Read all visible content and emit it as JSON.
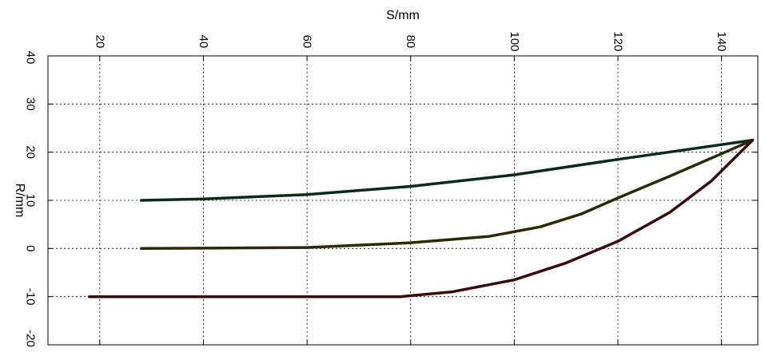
{
  "chart_data": {
    "type": "line",
    "title": "",
    "xlabel": "S/mm",
    "ylabel": "R/mm",
    "xlim": [
      10,
      147
    ],
    "ylim": [
      -20,
      40
    ],
    "xticks": [
      20,
      40,
      60,
      80,
      100,
      120,
      140
    ],
    "yticks": [
      -20,
      -10,
      0,
      10,
      20,
      30,
      40
    ],
    "grid": true,
    "legend": "none",
    "series": [
      {
        "color": "#0a2a1a",
        "points": [
          [
            28,
            10
          ],
          [
            40,
            10.3
          ],
          [
            60,
            11.2
          ],
          [
            80,
            12.9
          ],
          [
            100,
            15.3
          ],
          [
            120,
            18.5
          ],
          [
            146,
            22.5
          ]
        ]
      },
      {
        "color": "#2a2a08",
        "points": [
          [
            28,
            0
          ],
          [
            60,
            0.2
          ],
          [
            80,
            1.2
          ],
          [
            95,
            2.5
          ],
          [
            105,
            4.5
          ],
          [
            113,
            7.2
          ],
          [
            120,
            10.5
          ],
          [
            130,
            15
          ],
          [
            146,
            22.5
          ]
        ]
      },
      {
        "color": "#3a0a0a",
        "points": [
          [
            18,
            -10
          ],
          [
            50,
            -10
          ],
          [
            78,
            -10
          ],
          [
            88,
            -9
          ],
          [
            100,
            -6.5
          ],
          [
            110,
            -3
          ],
          [
            120,
            1.5
          ],
          [
            130,
            7.5
          ],
          [
            138,
            14
          ],
          [
            146,
            22.5
          ]
        ]
      }
    ]
  }
}
